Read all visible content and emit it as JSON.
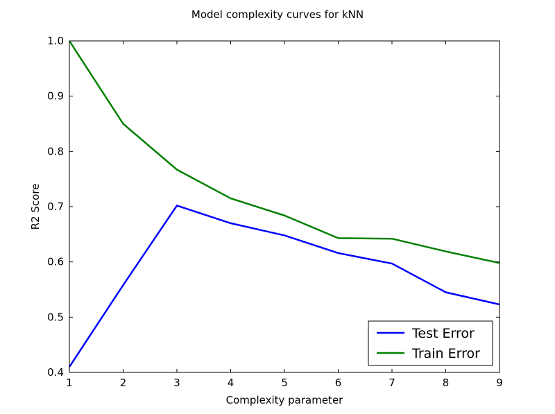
{
  "chart_data": {
    "type": "line",
    "title": "Model complexity curves for kNN",
    "xlabel": "Complexity parameter",
    "ylabel": "R2 Score",
    "xlim": [
      1,
      9
    ],
    "ylim": [
      0.4,
      1.0
    ],
    "x": [
      1,
      2,
      3,
      4,
      5,
      6,
      7,
      8,
      9
    ],
    "xticks": [
      "1",
      "2",
      "3",
      "4",
      "5",
      "6",
      "7",
      "8",
      "9"
    ],
    "yticks": [
      "0.4",
      "0.5",
      "0.6",
      "0.7",
      "0.8",
      "0.9",
      "1.0"
    ],
    "grid": false,
    "legend_position": "lower-right",
    "series": [
      {
        "name": "Test Error",
        "color": "#0000ff",
        "values": [
          0.41,
          0.558,
          0.702,
          0.67,
          0.648,
          0.616,
          0.597,
          0.545,
          0.523
        ]
      },
      {
        "name": "Train Error",
        "color": "#008000",
        "values": [
          1.0,
          0.85,
          0.767,
          0.715,
          0.684,
          0.643,
          0.642,
          0.619,
          0.598
        ]
      }
    ]
  }
}
